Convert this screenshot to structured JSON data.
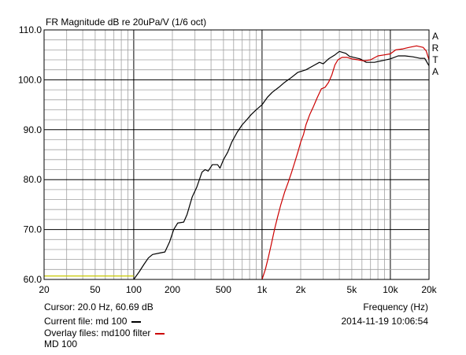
{
  "chart_data": {
    "type": "line",
    "title": "FR Magnitude dB re 20uPa/V (1/6 oct)",
    "xlabel": "Frequency (Hz)",
    "ylabel": "",
    "x_scale": "log",
    "xlim": [
      20,
      20000
    ],
    "ylim": [
      60,
      110
    ],
    "grid": true,
    "x_ticks": [
      {
        "value": 20,
        "label": "20"
      },
      {
        "value": 50,
        "label": "50"
      },
      {
        "value": 100,
        "label": "100"
      },
      {
        "value": 200,
        "label": "200"
      },
      {
        "value": 500,
        "label": "500"
      },
      {
        "value": 1000,
        "label": "1k"
      },
      {
        "value": 2000,
        "label": "2k"
      },
      {
        "value": 5000,
        "label": "5k"
      },
      {
        "value": 10000,
        "label": "10k"
      },
      {
        "value": 20000,
        "label": "20k"
      }
    ],
    "y_ticks": [
      {
        "value": 60,
        "label": "60.0"
      },
      {
        "value": 70,
        "label": "70.0"
      },
      {
        "value": 80,
        "label": "80.0"
      },
      {
        "value": 90,
        "label": "90.0"
      },
      {
        "value": 100,
        "label": "100.0"
      },
      {
        "value": 110,
        "label": "110.0"
      }
    ],
    "series": [
      {
        "name": "md 100",
        "color": "#000000",
        "points": [
          [
            100,
            60
          ],
          [
            110,
            61.5
          ],
          [
            120,
            63
          ],
          [
            130,
            64.3
          ],
          [
            140,
            65
          ],
          [
            160,
            65.3
          ],
          [
            175,
            65.5
          ],
          [
            190,
            67.5
          ],
          [
            205,
            70
          ],
          [
            220,
            71.3
          ],
          [
            245,
            71.5
          ],
          [
            260,
            73
          ],
          [
            285,
            76.5
          ],
          [
            310,
            78.5
          ],
          [
            340,
            81.5
          ],
          [
            360,
            82
          ],
          [
            380,
            81.7
          ],
          [
            410,
            83
          ],
          [
            450,
            83
          ],
          [
            470,
            82.3
          ],
          [
            500,
            84
          ],
          [
            540,
            85.5
          ],
          [
            580,
            87.5
          ],
          [
            640,
            89.5
          ],
          [
            700,
            91
          ],
          [
            760,
            92
          ],
          [
            820,
            93
          ],
          [
            900,
            94
          ],
          [
            1000,
            95
          ],
          [
            1100,
            96.5
          ],
          [
            1200,
            97.5
          ],
          [
            1350,
            98.5
          ],
          [
            1500,
            99.5
          ],
          [
            1700,
            100.5
          ],
          [
            1900,
            101.5
          ],
          [
            2200,
            102
          ],
          [
            2500,
            102.8
          ],
          [
            2800,
            103.5
          ],
          [
            3000,
            103.2
          ],
          [
            3300,
            104.2
          ],
          [
            3700,
            105
          ],
          [
            4000,
            105.7
          ],
          [
            4500,
            105.3
          ],
          [
            4800,
            104.7
          ],
          [
            5200,
            104.5
          ],
          [
            5800,
            104.2
          ],
          [
            6500,
            103.5
          ],
          [
            7500,
            103.5
          ],
          [
            8500,
            103.8
          ],
          [
            10000,
            104.2
          ],
          [
            11500,
            104.8
          ],
          [
            13000,
            104.8
          ],
          [
            15000,
            104.6
          ],
          [
            17000,
            104.3
          ],
          [
            18500,
            104.3
          ],
          [
            20000,
            102.8
          ]
        ]
      },
      {
        "name": "md100 filter",
        "color": "#cc0000",
        "points": [
          [
            1000,
            60
          ],
          [
            1060,
            62
          ],
          [
            1120,
            64.5
          ],
          [
            1180,
            67
          ],
          [
            1250,
            70
          ],
          [
            1320,
            72.5
          ],
          [
            1400,
            75
          ],
          [
            1500,
            77.5
          ],
          [
            1600,
            79.5
          ],
          [
            1700,
            81.5
          ],
          [
            1800,
            83.5
          ],
          [
            1900,
            85.5
          ],
          [
            2000,
            87.5
          ],
          [
            2100,
            89
          ],
          [
            2200,
            91
          ],
          [
            2350,
            93
          ],
          [
            2500,
            94.5
          ],
          [
            2700,
            96.5
          ],
          [
            2900,
            98.2
          ],
          [
            3100,
            98.5
          ],
          [
            3300,
            99.5
          ],
          [
            3500,
            101
          ],
          [
            3700,
            103
          ],
          [
            3900,
            104
          ],
          [
            4200,
            104.5
          ],
          [
            4600,
            104.5
          ],
          [
            5000,
            104.2
          ],
          [
            5600,
            104
          ],
          [
            6200,
            103.8
          ],
          [
            7000,
            104
          ],
          [
            8000,
            104.8
          ],
          [
            9000,
            105
          ],
          [
            10000,
            105.2
          ],
          [
            11000,
            106
          ],
          [
            12500,
            106.2
          ],
          [
            14000,
            106.5
          ],
          [
            16000,
            106.8
          ],
          [
            18000,
            106.5
          ],
          [
            19000,
            105.8
          ],
          [
            20000,
            104
          ]
        ]
      },
      {
        "name": "",
        "color": "#c8c800",
        "points": [
          [
            20,
            60.69
          ],
          [
            100,
            60.69
          ]
        ]
      }
    ],
    "side_label": [
      "A",
      "R",
      "T",
      "A"
    ],
    "cursor_text": "Cursor: 20.0 Hz, 60.69 dB",
    "current_file_text": "Current file: md 100",
    "overlay_files_text": "Overlay files: md100 filter",
    "extra_line": "MD 100",
    "timestamp": "2014-11-19  10:06:54"
  }
}
